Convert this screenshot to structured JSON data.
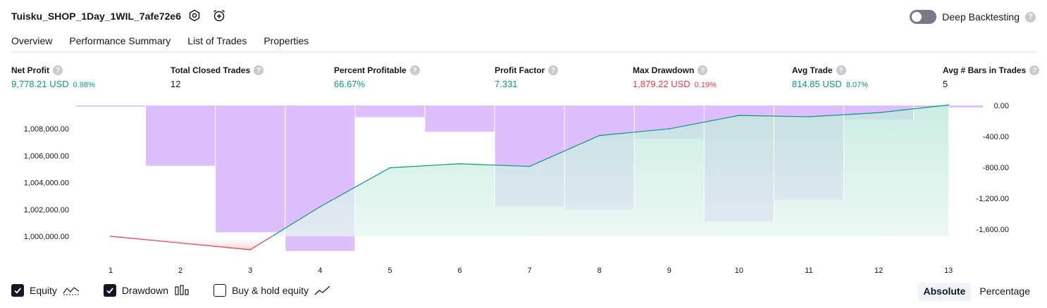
{
  "header": {
    "strategy_name": "Tuisku_SHOP_1Day_1WIL_7afe72e6",
    "settings_icon": "gear-icon",
    "alert_icon": "alarm-clock-plus-icon",
    "deep_backtesting_label": "Deep Backtesting",
    "deep_backtesting_on": false,
    "help_glyph": "?"
  },
  "tabs": [
    {
      "label": "Overview",
      "active": true
    },
    {
      "label": "Performance Summary",
      "active": false
    },
    {
      "label": "List of Trades",
      "active": false
    },
    {
      "label": "Properties",
      "active": false
    }
  ],
  "metrics": {
    "net_profit": {
      "label": "Net Profit",
      "value": "9,778.21 USD",
      "pct": "0.98%"
    },
    "total_closed_trades": {
      "label": "Total Closed Trades",
      "value": "12"
    },
    "percent_profitable": {
      "label": "Percent Profitable",
      "value": "66.67%"
    },
    "profit_factor": {
      "label": "Profit Factor",
      "value": "7.331"
    },
    "max_drawdown": {
      "label": "Max Drawdown",
      "value": "1,879.22 USD",
      "pct": "0.19%"
    },
    "avg_trade": {
      "label": "Avg Trade",
      "value": "814.85 USD",
      "pct": "8.07%"
    },
    "avg_bars": {
      "label": "Avg # Bars in Trades",
      "value": "5"
    }
  },
  "chart_data": {
    "type": "area",
    "x": [
      1,
      2,
      3,
      4,
      5,
      6,
      7,
      8,
      9,
      10,
      11,
      12,
      13
    ],
    "x_tick_labels": [
      "1",
      "2",
      "3",
      "4",
      "5",
      "6",
      "7",
      "8",
      "9",
      "10",
      "11",
      "12",
      "13"
    ],
    "left_axis": {
      "ticks": [
        1000000,
        1002000,
        1004000,
        1006000,
        1008000
      ],
      "tick_labels": [
        "1,000,000.00",
        "1,002,000.00",
        "1,004,000.00",
        "1,006,000.00",
        "1,008,000.00"
      ],
      "range": [
        998900,
        1010800
      ]
    },
    "right_axis": {
      "ticks": [
        0,
        -400,
        -800,
        -1200,
        -1600
      ],
      "tick_labels": [
        "0.00",
        "-400.00",
        "-800.00",
        "-1,200.00",
        "-1,600.00"
      ],
      "range": [
        -1950,
        50
      ]
    },
    "series": [
      {
        "name": "Equity",
        "axis": "left",
        "values": [
          1000000,
          999500,
          999000,
          1002200,
          1005100,
          1005400,
          1005200,
          1007500,
          1008000,
          1009000,
          1008900,
          1009200,
          1009778
        ]
      },
      {
        "name": "Drawdown",
        "axis": "right",
        "values": [
          -15,
          -780,
          -1640,
          -1880,
          -150,
          -340,
          -1310,
          -1340,
          -430,
          -1500,
          -1220,
          -180,
          -25
        ]
      }
    ],
    "colors": {
      "equity_gain": "#089981",
      "equity_loss": "#f23645",
      "equity_fill_top": "#c9ece2",
      "drawdown_fill": "#d6b4fc",
      "grid_line": "#ffffff",
      "axis_text": "#131722"
    },
    "grid": false,
    "legend": "bottom-left"
  },
  "legend": [
    {
      "label": "Equity",
      "checked": true,
      "icon": "equity-line-icon"
    },
    {
      "label": "Drawdown",
      "checked": true,
      "icon": "drawdown-bars-icon"
    },
    {
      "label": "Buy & hold equity",
      "checked": false,
      "icon": "buy-hold-line-icon"
    }
  ],
  "view_mode": {
    "absolute_label": "Absolute",
    "percentage_label": "Percentage",
    "selected": "Absolute"
  }
}
